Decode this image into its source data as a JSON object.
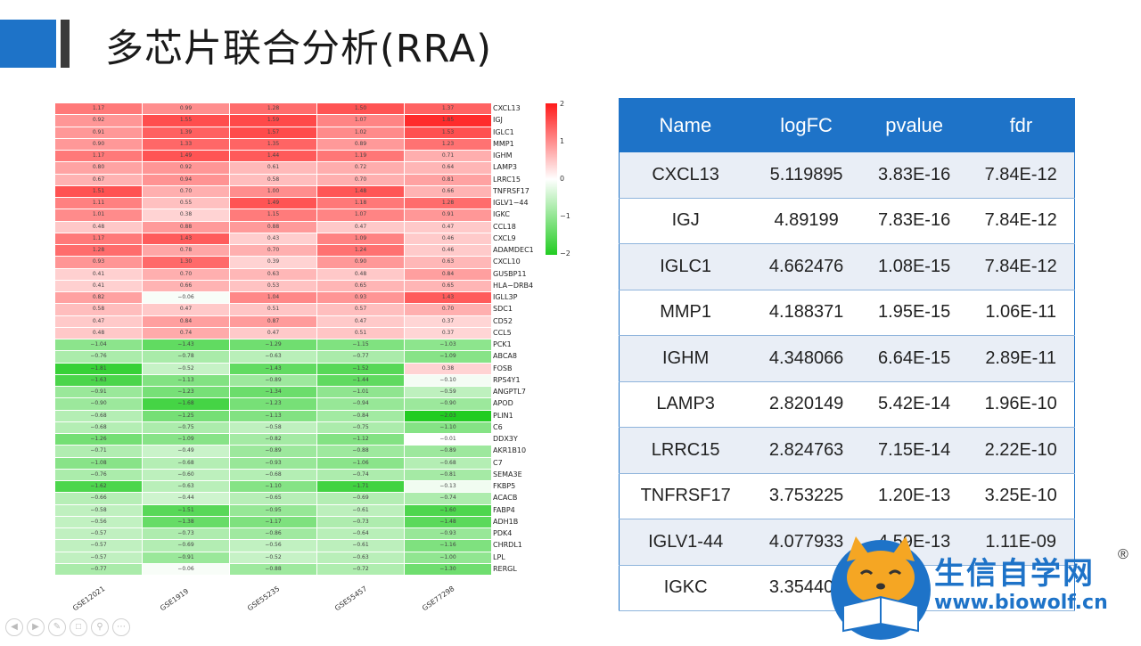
{
  "slide": {
    "title": "多芯片联合分析(RRA)"
  },
  "heatmap": {
    "datasets": [
      "GSE12021",
      "GSE1919",
      "GSE55235",
      "GSE55457",
      "GSE77298"
    ],
    "legend_ticks": [
      "2",
      "1",
      "0",
      "−1",
      "−2"
    ],
    "rows": [
      {
        "gene": "CXCL13",
        "values": [
          "1.17",
          "0.99",
          "1.28",
          "1.50",
          "1.37"
        ]
      },
      {
        "gene": "IGJ",
        "values": [
          "0.92",
          "1.55",
          "1.59",
          "1.07",
          "1.85"
        ]
      },
      {
        "gene": "IGLC1",
        "values": [
          "0.91",
          "1.39",
          "1.57",
          "1.02",
          "1.53"
        ]
      },
      {
        "gene": "MMP1",
        "values": [
          "0.90",
          "1.33",
          "1.35",
          "0.89",
          "1.23"
        ]
      },
      {
        "gene": "IGHM",
        "values": [
          "1.17",
          "1.49",
          "1.44",
          "1.19",
          "0.71"
        ]
      },
      {
        "gene": "LAMP3",
        "values": [
          "0.80",
          "0.92",
          "0.61",
          "0.72",
          "0.64"
        ]
      },
      {
        "gene": "LRRC15",
        "values": [
          "0.67",
          "0.94",
          "0.58",
          "0.70",
          "0.81"
        ]
      },
      {
        "gene": "TNFRSF17",
        "values": [
          "1.51",
          "0.70",
          "1.00",
          "1.48",
          "0.66"
        ]
      },
      {
        "gene": "IGLV1−44",
        "values": [
          "1.11",
          "0.55",
          "1.49",
          "1.18",
          "1.28"
        ]
      },
      {
        "gene": "IGKC",
        "values": [
          "1.01",
          "0.38",
          "1.15",
          "1.07",
          "0.91"
        ]
      },
      {
        "gene": "CCL18",
        "values": [
          "0.48",
          "0.88",
          "0.88",
          "0.47",
          "0.47"
        ]
      },
      {
        "gene": "CXCL9",
        "values": [
          "1.17",
          "1.43",
          "0.43",
          "1.09",
          "0.46"
        ]
      },
      {
        "gene": "ADAMDEC1",
        "values": [
          "1.28",
          "0.78",
          "0.70",
          "1.24",
          "0.46"
        ]
      },
      {
        "gene": "CXCL10",
        "values": [
          "0.93",
          "1.30",
          "0.39",
          "0.90",
          "0.63"
        ]
      },
      {
        "gene": "GUSBP11",
        "values": [
          "0.41",
          "0.70",
          "0.63",
          "0.48",
          "0.84"
        ]
      },
      {
        "gene": "HLA−DRB4",
        "values": [
          "0.41",
          "0.66",
          "0.53",
          "0.65",
          "0.65"
        ]
      },
      {
        "gene": "IGLL3P",
        "values": [
          "0.82",
          "−0.06",
          "1.04",
          "0.93",
          "1.43"
        ]
      },
      {
        "gene": "SDC1",
        "values": [
          "0.58",
          "0.47",
          "0.51",
          "0.57",
          "0.70"
        ]
      },
      {
        "gene": "CD52",
        "values": [
          "0.47",
          "0.84",
          "0.87",
          "0.47",
          "0.37"
        ]
      },
      {
        "gene": "CCL5",
        "values": [
          "0.48",
          "0.74",
          "0.47",
          "0.51",
          "0.37"
        ]
      },
      {
        "gene": "PCK1",
        "values": [
          "−1.04",
          "−1.43",
          "−1.29",
          "−1.15",
          "−1.03"
        ]
      },
      {
        "gene": "ABCA8",
        "values": [
          "−0.76",
          "−0.78",
          "−0.63",
          "−0.77",
          "−1.09"
        ]
      },
      {
        "gene": "FOSB",
        "values": [
          "−1.81",
          "−0.52",
          "−1.43",
          "−1.52",
          "0.38"
        ]
      },
      {
        "gene": "RPS4Y1",
        "values": [
          "−1.63",
          "−1.13",
          "−0.89",
          "−1.44",
          "−0.10"
        ]
      },
      {
        "gene": "ANGPTL7",
        "values": [
          "−0.91",
          "−1.23",
          "−1.34",
          "−1.01",
          "−0.59"
        ]
      },
      {
        "gene": "APOD",
        "values": [
          "−0.90",
          "−1.68",
          "−1.23",
          "−0.94",
          "−0.90"
        ]
      },
      {
        "gene": "PLIN1",
        "values": [
          "−0.68",
          "−1.25",
          "−1.13",
          "−0.84",
          "−2.03"
        ]
      },
      {
        "gene": "C6",
        "values": [
          "−0.68",
          "−0.75",
          "−0.58",
          "−0.75",
          "−1.10"
        ]
      },
      {
        "gene": "DDX3Y",
        "values": [
          "−1.26",
          "−1.09",
          "−0.82",
          "−1.12",
          "−0.01"
        ]
      },
      {
        "gene": "AKR1B10",
        "values": [
          "−0.71",
          "−0.49",
          "−0.89",
          "−0.88",
          "−0.89"
        ]
      },
      {
        "gene": "C7",
        "values": [
          "−1.08",
          "−0.68",
          "−0.93",
          "−1.06",
          "−0.68"
        ]
      },
      {
        "gene": "SEMA3E",
        "values": [
          "−0.76",
          "−0.60",
          "−0.68",
          "−0.74",
          "−0.81"
        ]
      },
      {
        "gene": "FKBP5",
        "values": [
          "−1.62",
          "−0.63",
          "−1.10",
          "−1.71",
          "−0.13"
        ]
      },
      {
        "gene": "ACACB",
        "values": [
          "−0.66",
          "−0.44",
          "−0.65",
          "−0.69",
          "−0.74"
        ]
      },
      {
        "gene": "FABP4",
        "values": [
          "−0.58",
          "−1.51",
          "−0.95",
          "−0.61",
          "−1.60"
        ]
      },
      {
        "gene": "ADH1B",
        "values": [
          "−0.56",
          "−1.38",
          "−1.17",
          "−0.73",
          "−1.48"
        ]
      },
      {
        "gene": "PDK4",
        "values": [
          "−0.57",
          "−0.73",
          "−0.86",
          "−0.64",
          "−0.93"
        ]
      },
      {
        "gene": "CHRDL1",
        "values": [
          "−0.57",
          "−0.69",
          "−0.56",
          "−0.61",
          "−1.16"
        ]
      },
      {
        "gene": "LPL",
        "values": [
          "−0.57",
          "−0.91",
          "−0.52",
          "−0.63",
          "−1.00"
        ]
      },
      {
        "gene": "RERGL",
        "values": [
          "−0.77",
          "−0.06",
          "−0.88",
          "−0.72",
          "−1.30"
        ]
      }
    ]
  },
  "table": {
    "headers": [
      "Name",
      "logFC",
      "pvalue",
      "fdr"
    ],
    "rows": [
      [
        "CXCL13",
        "5.119895",
        "3.83E-16",
        "7.84E-12"
      ],
      [
        "IGJ",
        "4.89199",
        "7.83E-16",
        "7.84E-12"
      ],
      [
        "IGLC1",
        "4.662476",
        "1.08E-15",
        "7.84E-12"
      ],
      [
        "MMP1",
        "4.188371",
        "1.95E-15",
        "1.06E-11"
      ],
      [
        "IGHM",
        "4.348066",
        "6.64E-15",
        "2.89E-11"
      ],
      [
        "LAMP3",
        "2.820149",
        "5.42E-14",
        "1.96E-10"
      ],
      [
        "LRRC15",
        "2.824763",
        "7.15E-14",
        "2.22E-10"
      ],
      [
        "TNFRSF17",
        "3.753225",
        "1.20E-13",
        "3.25E-10"
      ],
      [
        "IGLV1-44",
        "4.077933",
        "4.59E-13",
        "1.11E-09"
      ],
      [
        "IGKC",
        "3.354401",
        "",
        ""
      ]
    ]
  },
  "watermark": {
    "name": "生信自学网",
    "registered": "®",
    "url": "www.biowolf.cn"
  },
  "colors": {
    "accent": "#1e73c8",
    "high": "#ff1a1a",
    "low": "#22cc22"
  }
}
